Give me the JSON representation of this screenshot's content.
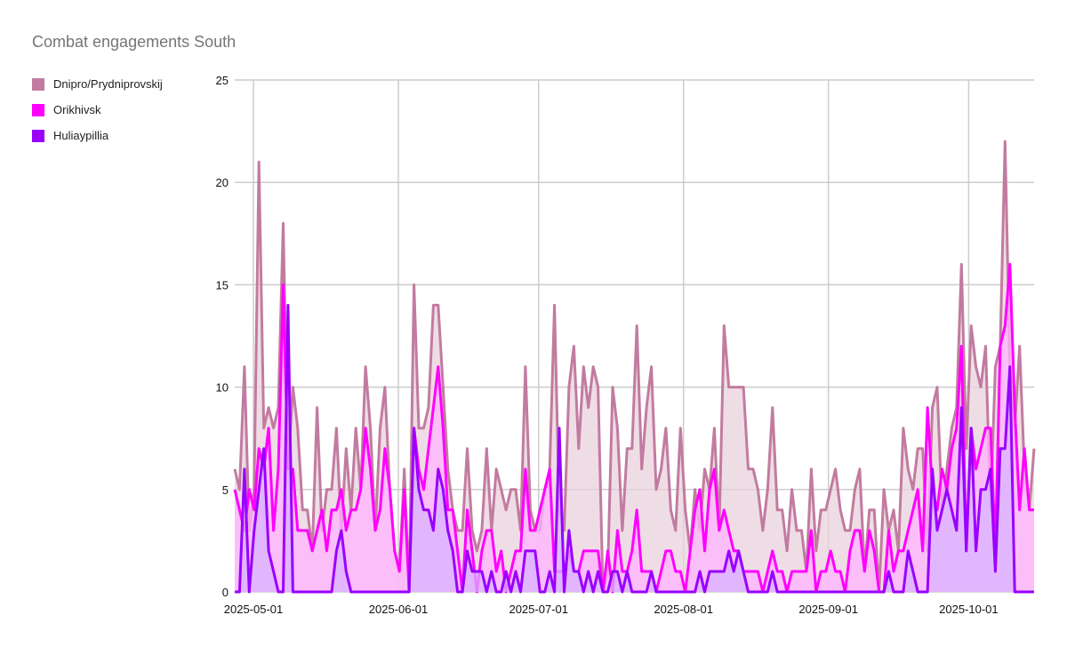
{
  "chart_data": {
    "type": "area",
    "title": "Combat engagements South",
    "xlabel": "",
    "ylabel": "",
    "ylim": [
      0,
      25
    ],
    "y_ticks": [
      "0",
      "5",
      "10",
      "15",
      "20",
      "25"
    ],
    "x_ticks": [
      "2025-05-01",
      "2025-06-01",
      "2025-07-01",
      "2025-08-01",
      "2025-09-01",
      "2025-10-01"
    ],
    "x_start": "2025-04-27",
    "x_end": "2025-10-15",
    "grid": true,
    "legend_position": "top-left",
    "series": [
      {
        "name": "Dnipro/Prydniprovskij",
        "color": "#c27ba0",
        "fill": "#ead1dc",
        "values": [
          6,
          5,
          11,
          3,
          5,
          21,
          8,
          9,
          8,
          9,
          18,
          6,
          10,
          8,
          4,
          4,
          2,
          9,
          3,
          5,
          5,
          8,
          3,
          7,
          4,
          8,
          5,
          11,
          8,
          3,
          8,
          10,
          5,
          2,
          1,
          6,
          0,
          15,
          8,
          8,
          9,
          14,
          14,
          10,
          6,
          4,
          3,
          3,
          7,
          3,
          2,
          3,
          7,
          3,
          6,
          5,
          4,
          5,
          5,
          3,
          11,
          4,
          3,
          3,
          5,
          6,
          14,
          4,
          3,
          10,
          12,
          7,
          11,
          9,
          11,
          10,
          0,
          1,
          10,
          8,
          3,
          7,
          7,
          13,
          6,
          9,
          11,
          5,
          6,
          8,
          4,
          3,
          8,
          4,
          2,
          5,
          3,
          6,
          5,
          8,
          3,
          13,
          10,
          10,
          10,
          10,
          6,
          6,
          5,
          3,
          5,
          9,
          4,
          4,
          2,
          5,
          3,
          3,
          1,
          6,
          2,
          4,
          4,
          5,
          6,
          4,
          3,
          3,
          5,
          6,
          1,
          4,
          4,
          0,
          5,
          3,
          4,
          2,
          8,
          6,
          5,
          7,
          7,
          2,
          9,
          10,
          4,
          6,
          8,
          9,
          16,
          7,
          13,
          11,
          10,
          12,
          4,
          11,
          12,
          22,
          11,
          8,
          12,
          6,
          4,
          7
        ]
      },
      {
        "name": "Orikhivsk",
        "color": "#ff00ff",
        "fill": "#ffb3ff",
        "values": [
          5,
          4,
          3,
          5,
          4,
          7,
          6,
          8,
          3,
          6,
          15,
          6,
          6,
          3,
          3,
          3,
          2,
          3,
          4,
          2,
          4,
          4,
          5,
          3,
          4,
          4,
          5,
          8,
          6,
          3,
          4,
          7,
          5,
          2,
          1,
          5,
          0,
          8,
          6,
          5,
          7,
          9,
          11,
          8,
          4,
          4,
          2,
          0,
          4,
          2,
          0,
          2,
          3,
          3,
          1,
          2,
          0,
          1,
          2,
          2,
          6,
          3,
          3,
          4,
          5,
          6,
          1,
          1,
          1,
          2,
          1,
          1,
          2,
          2,
          2,
          2,
          0,
          2,
          0,
          3,
          1,
          1,
          2,
          4,
          1,
          1,
          1,
          0,
          1,
          2,
          2,
          1,
          1,
          0,
          2,
          4,
          5,
          2,
          5,
          6,
          3,
          4,
          3,
          2,
          2,
          1,
          1,
          1,
          1,
          0,
          1,
          2,
          1,
          1,
          0,
          1,
          1,
          1,
          1,
          3,
          0,
          1,
          1,
          2,
          1,
          1,
          0,
          2,
          3,
          3,
          1,
          3,
          2,
          0,
          0,
          3,
          1,
          2,
          2,
          3,
          4,
          5,
          2,
          9,
          5,
          4,
          6,
          5,
          7,
          8,
          12,
          2,
          8,
          6,
          7,
          8,
          8,
          2,
          12,
          13,
          16,
          9,
          4,
          7,
          4,
          4
        ]
      },
      {
        "name": "Huliaypillia",
        "color": "#9900ff",
        "fill": "#d9b3ff",
        "values": [
          0,
          0,
          6,
          0,
          3,
          5,
          7,
          2,
          1,
          0,
          0,
          14,
          0,
          0,
          0,
          0,
          0,
          0,
          0,
          0,
          0,
          2,
          3,
          1,
          0,
          0,
          0,
          0,
          0,
          0,
          0,
          0,
          0,
          0,
          0,
          0,
          0,
          8,
          5,
          4,
          4,
          3,
          6,
          5,
          3,
          2,
          0,
          0,
          2,
          1,
          1,
          1,
          0,
          1,
          0,
          0,
          1,
          0,
          1,
          0,
          2,
          2,
          2,
          0,
          0,
          1,
          0,
          8,
          0,
          3,
          1,
          1,
          0,
          1,
          0,
          1,
          0,
          0,
          1,
          1,
          0,
          1,
          0,
          0,
          0,
          0,
          1,
          0,
          0,
          0,
          0,
          0,
          0,
          0,
          0,
          0,
          1,
          0,
          1,
          1,
          1,
          1,
          2,
          1,
          2,
          1,
          0,
          0,
          0,
          0,
          0,
          1,
          0,
          0,
          0,
          0,
          0,
          0,
          0,
          0,
          0,
          0,
          0,
          0,
          0,
          0,
          0,
          0,
          0,
          0,
          0,
          0,
          0,
          0,
          0,
          1,
          0,
          0,
          0,
          2,
          1,
          0,
          0,
          0,
          6,
          3,
          4,
          5,
          4,
          3,
          9,
          2,
          8,
          2,
          5,
          5,
          6,
          1,
          7,
          7,
          11,
          0,
          0,
          0,
          0,
          0
        ]
      }
    ]
  }
}
